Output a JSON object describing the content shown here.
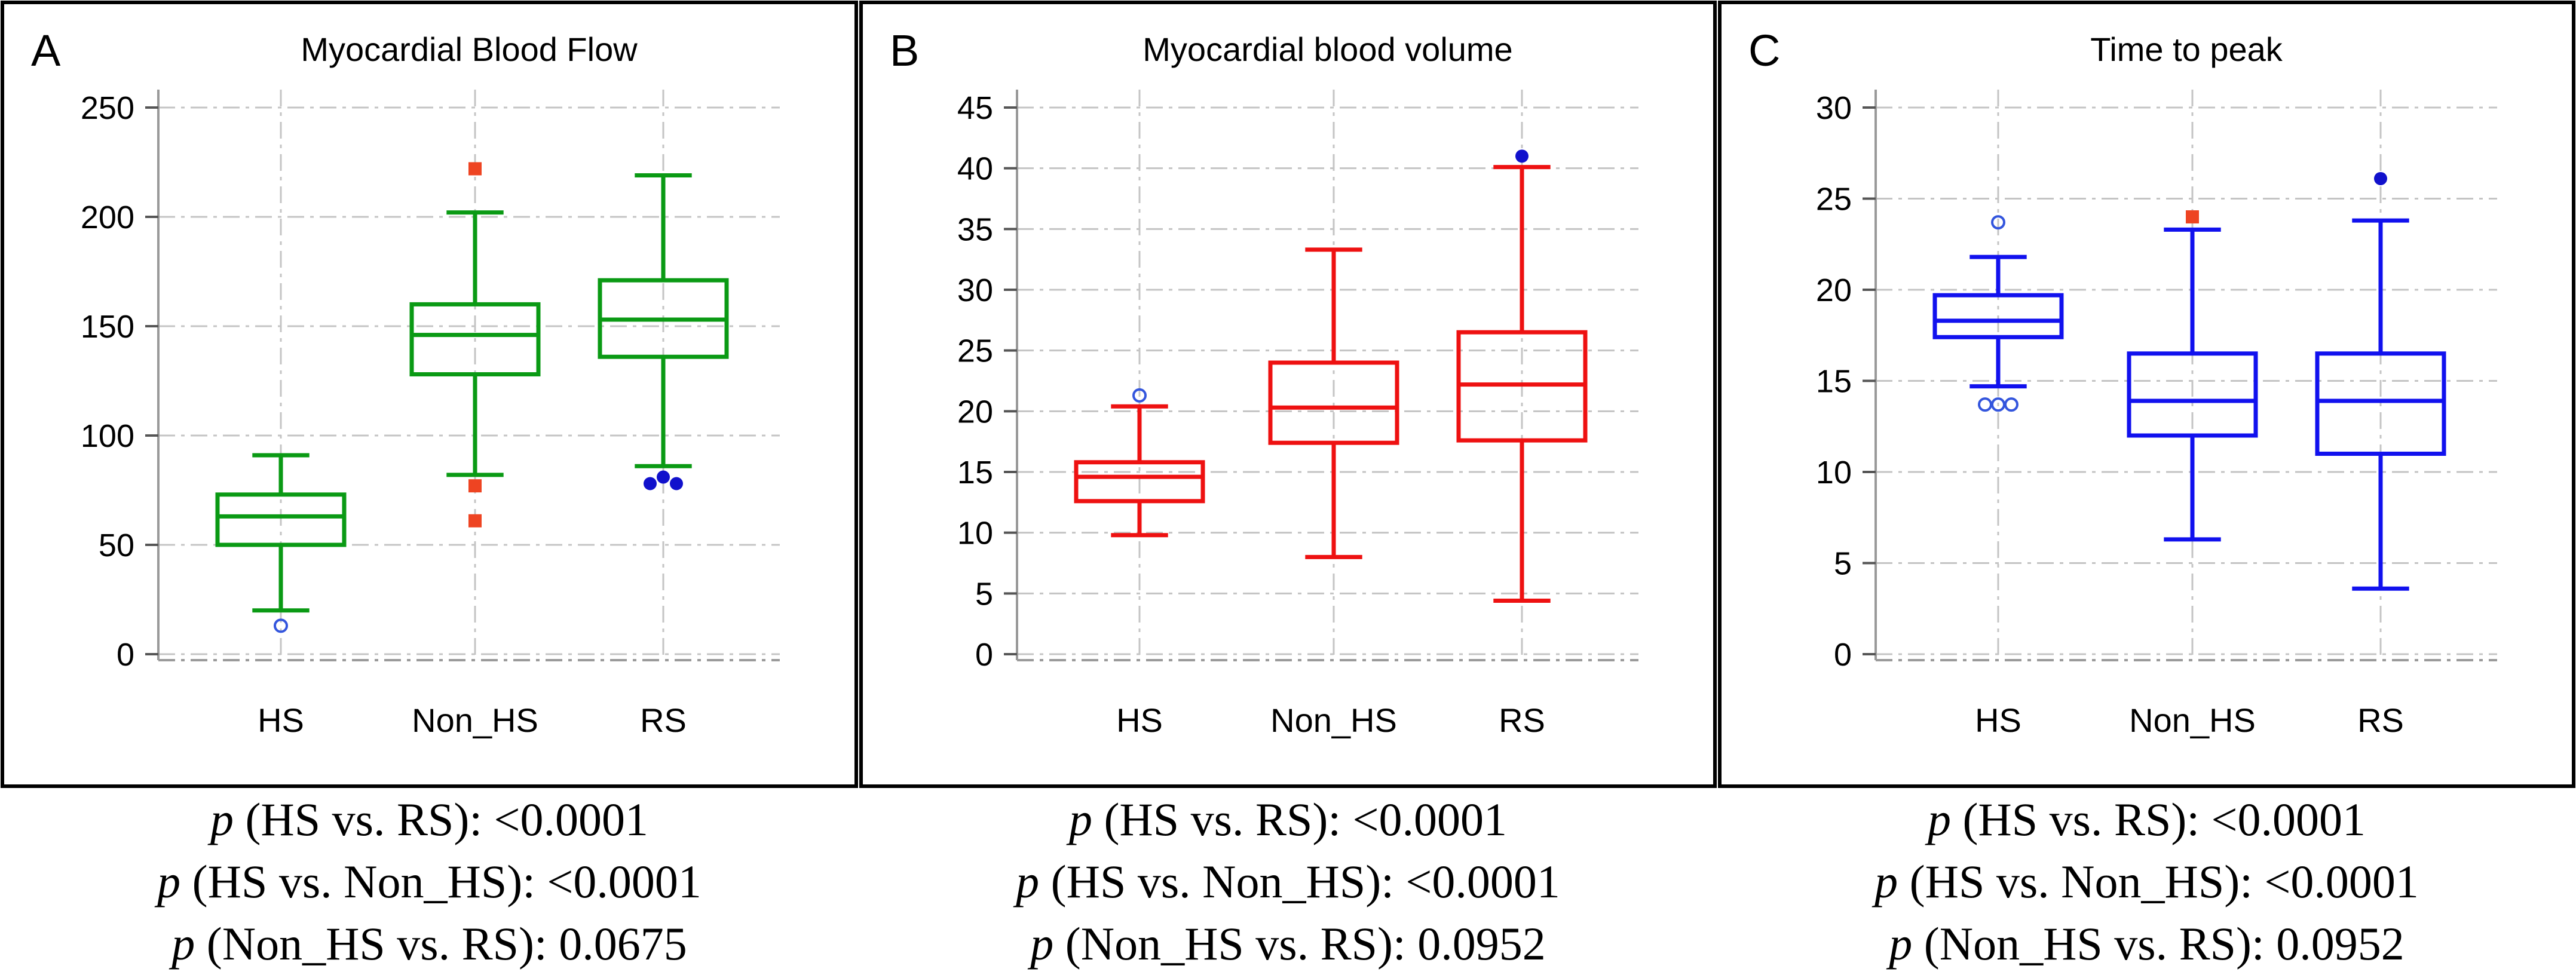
{
  "figure": {
    "panels": [
      {
        "letter": "A",
        "colors": {
          "box": "#0a9a14"
        },
        "captions": [
          {
            "p_symbol": "p",
            "comparison": "(HS vs. RS): <0.0001"
          },
          {
            "p_symbol": "p",
            "comparison": "(HS vs. Non_HS): <0.0001"
          },
          {
            "p_symbol": "p",
            "comparison": "(Non_HS vs. RS): 0.0675"
          }
        ]
      },
      {
        "letter": "B",
        "colors": {
          "box": "#ee1111"
        },
        "captions": [
          {
            "p_symbol": "p",
            "comparison": "(HS vs. RS): <0.0001"
          },
          {
            "p_symbol": "p",
            "comparison": "(HS vs. Non_HS): <0.0001"
          },
          {
            "p_symbol": "p",
            "comparison": "(Non_HS vs. RS): 0.0952"
          }
        ]
      },
      {
        "letter": "C",
        "colors": {
          "box": "#1111ee"
        },
        "captions": [
          {
            "p_symbol": "p",
            "comparison": "(HS vs. RS): <0.0001"
          },
          {
            "p_symbol": "p",
            "comparison": "(HS vs. Non_HS): <0.0001"
          },
          {
            "p_symbol": "p",
            "comparison": "(Non_HS vs. RS): 0.0952"
          }
        ]
      }
    ],
    "outlier_colors": {
      "square": "#ee4422",
      "dot": "#1111cc",
      "ring": "#3355dd"
    }
  },
  "chart_data": [
    {
      "type": "box",
      "title": "Myocardial Blood Flow",
      "xlabel": "",
      "ylabel": "",
      "ylim": [
        0,
        250
      ],
      "yticks": [
        0,
        50,
        100,
        150,
        200,
        250
      ],
      "categories": [
        "HS",
        "Non_HS",
        "RS"
      ],
      "grid": true,
      "boxes": [
        {
          "category": "HS",
          "whisker_low": 20,
          "q1": 50,
          "median": 63,
          "q3": 73,
          "whisker_high": 91,
          "outliers": [
            {
              "value": 13,
              "marker": "ring"
            }
          ]
        },
        {
          "category": "Non_HS",
          "whisker_low": 82,
          "q1": 128,
          "median": 146,
          "q3": 160,
          "whisker_high": 202,
          "outliers": [
            {
              "value": 222,
              "marker": "square"
            },
            {
              "value": 77,
              "marker": "square"
            },
            {
              "value": 61,
              "marker": "square"
            }
          ]
        },
        {
          "category": "RS",
          "whisker_low": 86,
          "q1": 136,
          "median": 153,
          "q3": 171,
          "whisker_high": 219,
          "outliers": [
            {
              "value": 81,
              "marker": "dot"
            },
            {
              "value": 78,
              "marker": "dot",
              "offset": -1
            },
            {
              "value": 78,
              "marker": "dot",
              "offset": 1
            }
          ]
        }
      ]
    },
    {
      "type": "box",
      "title": "Myocardial blood volume",
      "xlabel": "",
      "ylabel": "",
      "ylim": [
        0,
        45
      ],
      "yticks": [
        0,
        5,
        10,
        15,
        20,
        25,
        30,
        35,
        40,
        45
      ],
      "categories": [
        "HS",
        "Non_HS",
        "RS"
      ],
      "grid": true,
      "boxes": [
        {
          "category": "HS",
          "whisker_low": 9.8,
          "q1": 12.6,
          "median": 14.6,
          "q3": 15.8,
          "whisker_high": 20.4,
          "outliers": [
            {
              "value": 21.3,
              "marker": "ring"
            }
          ]
        },
        {
          "category": "Non_HS",
          "whisker_low": 8.0,
          "q1": 17.4,
          "median": 20.3,
          "q3": 24.0,
          "whisker_high": 33.3,
          "outliers": []
        },
        {
          "category": "RS",
          "whisker_low": 4.4,
          "q1": 17.6,
          "median": 22.2,
          "q3": 26.5,
          "whisker_high": 40.1,
          "outliers": [
            {
              "value": 41.0,
              "marker": "dot"
            }
          ]
        }
      ]
    },
    {
      "type": "box",
      "title": "Time to peak",
      "xlabel": "",
      "ylabel": "",
      "ylim": [
        0,
        30
      ],
      "yticks": [
        0,
        5,
        10,
        15,
        20,
        25,
        30
      ],
      "categories": [
        "HS",
        "Non_HS",
        "RS"
      ],
      "grid": true,
      "boxes": [
        {
          "category": "HS",
          "whisker_low": 14.7,
          "q1": 17.4,
          "median": 18.3,
          "q3": 19.7,
          "whisker_high": 21.8,
          "outliers": [
            {
              "value": 23.7,
              "marker": "ring"
            },
            {
              "value": 13.7,
              "marker": "ring",
              "offset": -1
            },
            {
              "value": 13.7,
              "marker": "ring",
              "offset": 0
            },
            {
              "value": 13.7,
              "marker": "ring",
              "offset": 1
            }
          ]
        },
        {
          "category": "Non_HS",
          "whisker_low": 6.3,
          "q1": 12.0,
          "median": 13.9,
          "q3": 16.5,
          "whisker_high": 23.3,
          "outliers": [
            {
              "value": 24.0,
              "marker": "square"
            }
          ]
        },
        {
          "category": "RS",
          "whisker_low": 3.6,
          "q1": 11.0,
          "median": 13.9,
          "q3": 16.5,
          "whisker_high": 23.8,
          "outliers": [
            {
              "value": 26.1,
              "marker": "dot"
            }
          ]
        }
      ]
    }
  ]
}
